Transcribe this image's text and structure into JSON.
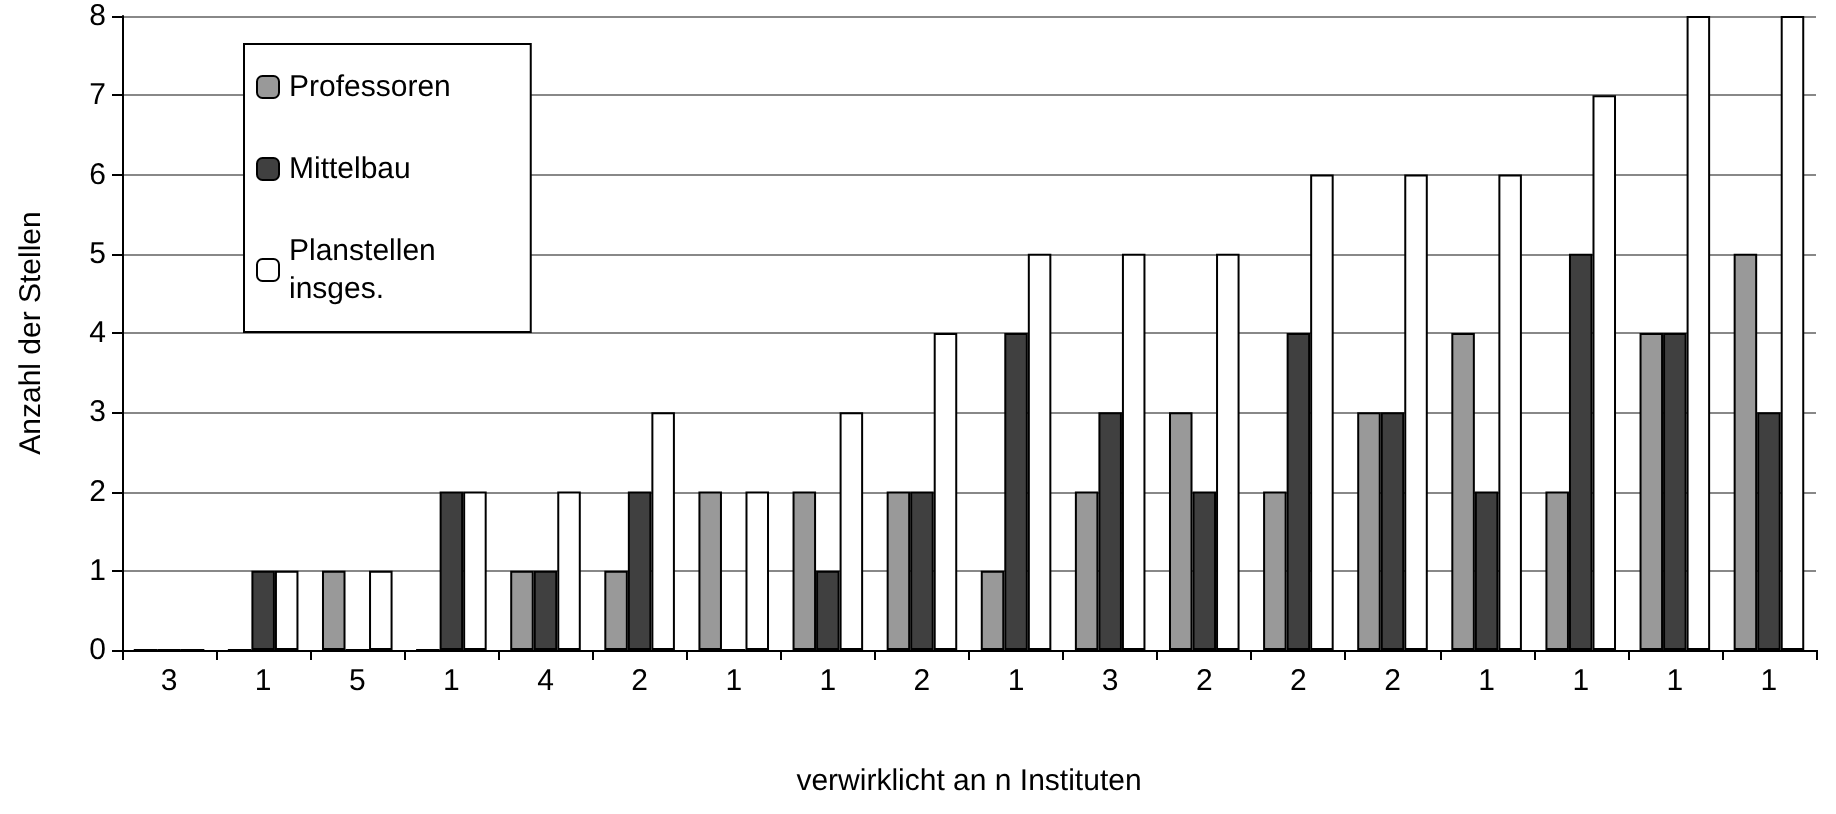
{
  "chart_data": {
    "type": "bar",
    "xlabel": "verwirklicht an n Instituten",
    "ylabel": "Anzahl der Stellen",
    "categories": [
      "3",
      "1",
      "5",
      "1",
      "4",
      "2",
      "1",
      "1",
      "2",
      "1",
      "3",
      "2",
      "2",
      "2",
      "1",
      "1",
      "1",
      "1"
    ],
    "series": [
      {
        "name": "Professoren",
        "color": "#999999",
        "values": [
          0,
          0,
          1,
          0,
          1,
          1,
          2,
          2,
          2,
          1,
          2,
          3,
          2,
          3,
          4,
          2,
          4,
          5
        ]
      },
      {
        "name": "Mittelbau",
        "color": "#404040",
        "values": [
          0,
          1,
          0,
          2,
          1,
          2,
          0,
          1,
          2,
          4,
          3,
          2,
          4,
          3,
          2,
          5,
          4,
          3
        ]
      },
      {
        "name": "Planstellen\ninsges.",
        "color": "#ffffff",
        "values": [
          0,
          1,
          1,
          2,
          2,
          3,
          2,
          3,
          4,
          5,
          5,
          5,
          6,
          6,
          6,
          7,
          8,
          8
        ]
      }
    ],
    "ylim": [
      0,
      8
    ],
    "yticks": [
      0,
      1,
      2,
      3,
      4,
      5,
      6,
      7,
      8
    ],
    "grid": "y",
    "legend": "top left"
  }
}
